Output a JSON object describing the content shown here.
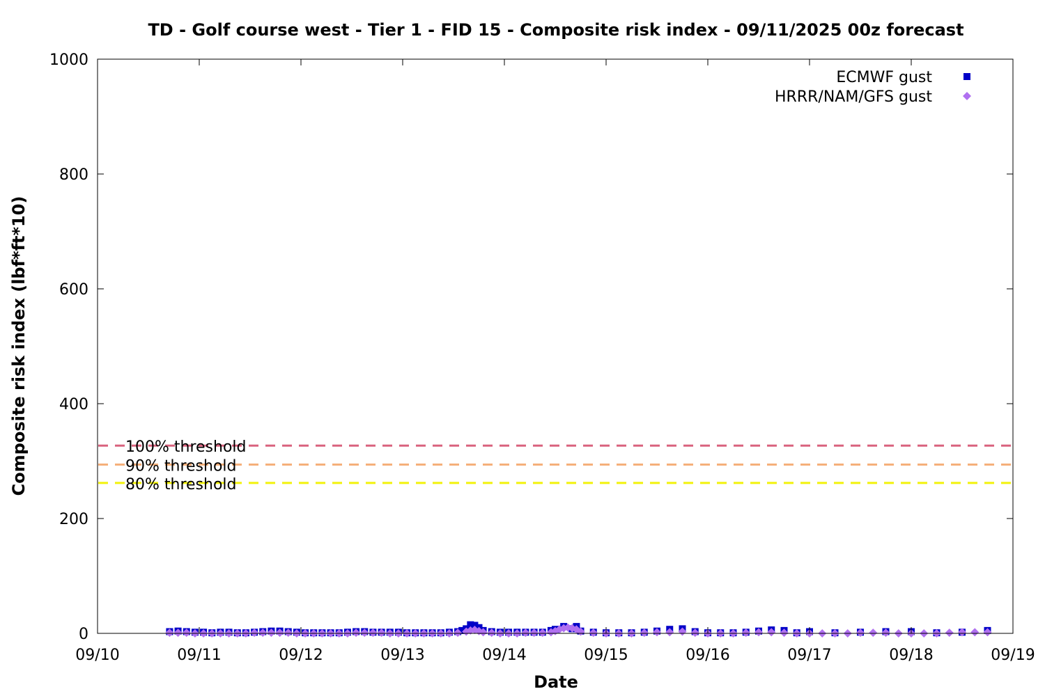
{
  "chart_data": {
    "type": "scatter",
    "title": "TD - Golf course west - Tier 1 - FID 15 - Composite risk index - 09/11/2025 00z forecast",
    "xlabel": "Date",
    "ylabel": "Composite risk index (lbf*ft*10)",
    "xlim": [
      "09/10",
      "09/19"
    ],
    "ylim": [
      0,
      1000
    ],
    "x_ticks": [
      "09/10",
      "09/11",
      "09/12",
      "09/13",
      "09/14",
      "09/15",
      "09/16",
      "09/17",
      "09/18",
      "09/19"
    ],
    "y_ticks": [
      0,
      200,
      400,
      600,
      800,
      1000
    ],
    "grid": false,
    "legend_position": "top-right",
    "thresholds": [
      {
        "label": "100% threshold",
        "value": 327,
        "color": "#d9637e"
      },
      {
        "label": "90% threshold",
        "value": 294,
        "color": "#f5b07a"
      },
      {
        "label": "80% threshold",
        "value": 262,
        "color": "#f2f20a"
      }
    ],
    "series": [
      {
        "name": "ECMWF gust",
        "marker": "square",
        "color": "#0000c8",
        "points": [
          [
            "09/10 17:00",
            3
          ],
          [
            "09/10 19:00",
            4
          ],
          [
            "09/10 21:00",
            3
          ],
          [
            "09/10 23:00",
            2
          ],
          [
            "09/11 01:00",
            2
          ],
          [
            "09/11 03:00",
            1
          ],
          [
            "09/11 05:00",
            2
          ],
          [
            "09/11 07:00",
            2
          ],
          [
            "09/11 09:00",
            1
          ],
          [
            "09/11 11:00",
            1
          ],
          [
            "09/11 13:00",
            2
          ],
          [
            "09/11 15:00",
            3
          ],
          [
            "09/11 17:00",
            4
          ],
          [
            "09/11 19:00",
            4
          ],
          [
            "09/11 21:00",
            3
          ],
          [
            "09/11 23:00",
            2
          ],
          [
            "09/12 01:00",
            1
          ],
          [
            "09/12 03:00",
            1
          ],
          [
            "09/12 05:00",
            1
          ],
          [
            "09/12 07:00",
            1
          ],
          [
            "09/12 09:00",
            1
          ],
          [
            "09/12 11:00",
            2
          ],
          [
            "09/12 13:00",
            3
          ],
          [
            "09/12 15:00",
            3
          ],
          [
            "09/12 17:00",
            2
          ],
          [
            "09/12 19:00",
            2
          ],
          [
            "09/12 21:00",
            2
          ],
          [
            "09/12 23:00",
            2
          ],
          [
            "09/13 01:00",
            1
          ],
          [
            "09/13 03:00",
            1
          ],
          [
            "09/13 05:00",
            1
          ],
          [
            "09/13 07:00",
            1
          ],
          [
            "09/13 09:00",
            1
          ],
          [
            "09/13 11:00",
            2
          ],
          [
            "09/13 13:00",
            3
          ],
          [
            "09/13 14:00",
            5
          ],
          [
            "09/13 15:00",
            8
          ],
          [
            "09/13 16:00",
            15
          ],
          [
            "09/13 17:00",
            14
          ],
          [
            "09/13 18:00",
            10
          ],
          [
            "09/13 19:00",
            5
          ],
          [
            "09/13 21:00",
            3
          ],
          [
            "09/13 23:00",
            2
          ],
          [
            "09/14 01:00",
            2
          ],
          [
            "09/14 03:00",
            2
          ],
          [
            "09/14 05:00",
            2
          ],
          [
            "09/14 07:00",
            2
          ],
          [
            "09/14 09:00",
            2
          ],
          [
            "09/14 11:00",
            5
          ],
          [
            "09/14 12:00",
            7
          ],
          [
            "09/14 14:00",
            12
          ],
          [
            "09/14 16:00",
            8
          ],
          [
            "09/14 17:00",
            12
          ],
          [
            "09/14 18:00",
            4
          ],
          [
            "09/14 21:00",
            2
          ],
          [
            "09/15 00:00",
            1
          ],
          [
            "09/15 03:00",
            1
          ],
          [
            "09/15 06:00",
            1
          ],
          [
            "09/15 09:00",
            2
          ],
          [
            "09/15 12:00",
            4
          ],
          [
            "09/15 15:00",
            7
          ],
          [
            "09/15 18:00",
            8
          ],
          [
            "09/15 21:00",
            3
          ],
          [
            "09/16 00:00",
            1
          ],
          [
            "09/16 03:00",
            1
          ],
          [
            "09/16 06:00",
            1
          ],
          [
            "09/16 09:00",
            2
          ],
          [
            "09/16 12:00",
            4
          ],
          [
            "09/16 15:00",
            6
          ],
          [
            "09/16 18:00",
            5
          ],
          [
            "09/16 21:00",
            1
          ],
          [
            "09/17 00:00",
            3
          ],
          [
            "09/17 06:00",
            1
          ],
          [
            "09/17 12:00",
            2
          ],
          [
            "09/17 18:00",
            3
          ],
          [
            "09/18 00:00",
            3
          ],
          [
            "09/18 06:00",
            1
          ],
          [
            "09/18 12:00",
            2
          ],
          [
            "09/18 18:00",
            5
          ]
        ]
      },
      {
        "name": "HRRR/NAM/GFS gust",
        "marker": "diamond",
        "color": "#b070f0",
        "points": [
          [
            "09/10 17:00",
            1
          ],
          [
            "09/10 19:00",
            1
          ],
          [
            "09/10 21:00",
            1
          ],
          [
            "09/10 23:00",
            0
          ],
          [
            "09/11 01:00",
            0
          ],
          [
            "09/11 03:00",
            0
          ],
          [
            "09/11 05:00",
            0
          ],
          [
            "09/11 07:00",
            0
          ],
          [
            "09/11 09:00",
            0
          ],
          [
            "09/11 11:00",
            0
          ],
          [
            "09/11 13:00",
            1
          ],
          [
            "09/11 15:00",
            1
          ],
          [
            "09/11 17:00",
            1
          ],
          [
            "09/11 19:00",
            1
          ],
          [
            "09/11 21:00",
            1
          ],
          [
            "09/11 23:00",
            0
          ],
          [
            "09/12 01:00",
            0
          ],
          [
            "09/12 03:00",
            0
          ],
          [
            "09/12 05:00",
            0
          ],
          [
            "09/12 07:00",
            0
          ],
          [
            "09/12 09:00",
            0
          ],
          [
            "09/12 11:00",
            0
          ],
          [
            "09/12 13:00",
            1
          ],
          [
            "09/12 15:00",
            1
          ],
          [
            "09/12 17:00",
            1
          ],
          [
            "09/12 19:00",
            1
          ],
          [
            "09/12 21:00",
            0
          ],
          [
            "09/12 23:00",
            0
          ],
          [
            "09/13 01:00",
            0
          ],
          [
            "09/13 03:00",
            0
          ],
          [
            "09/13 05:00",
            0
          ],
          [
            "09/13 07:00",
            0
          ],
          [
            "09/13 09:00",
            0
          ],
          [
            "09/13 11:00",
            0
          ],
          [
            "09/13 13:00",
            1
          ],
          [
            "09/13 15:00",
            3
          ],
          [
            "09/13 16:00",
            5
          ],
          [
            "09/13 17:00",
            6
          ],
          [
            "09/13 18:00",
            4
          ],
          [
            "09/13 19:00",
            2
          ],
          [
            "09/13 21:00",
            1
          ],
          [
            "09/13 23:00",
            0
          ],
          [
            "09/14 01:00",
            0
          ],
          [
            "09/14 03:00",
            0
          ],
          [
            "09/14 05:00",
            1
          ],
          [
            "09/14 07:00",
            1
          ],
          [
            "09/14 09:00",
            1
          ],
          [
            "09/14 11:00",
            2
          ],
          [
            "09/14 12:00",
            4
          ],
          [
            "09/14 13:00",
            7
          ],
          [
            "09/14 14:00",
            9
          ],
          [
            "09/14 15:00",
            10
          ],
          [
            "09/14 16:00",
            9
          ],
          [
            "09/14 17:00",
            7
          ],
          [
            "09/14 18:00",
            3
          ],
          [
            "09/14 21:00",
            1
          ],
          [
            "09/15 00:00",
            0
          ],
          [
            "09/15 03:00",
            0
          ],
          [
            "09/15 06:00",
            0
          ],
          [
            "09/15 09:00",
            1
          ],
          [
            "09/15 12:00",
            2
          ],
          [
            "09/15 15:00",
            2
          ],
          [
            "09/15 18:00",
            3
          ],
          [
            "09/15 21:00",
            1
          ],
          [
            "09/16 00:00",
            0
          ],
          [
            "09/16 03:00",
            0
          ],
          [
            "09/16 06:00",
            0
          ],
          [
            "09/16 09:00",
            1
          ],
          [
            "09/16 12:00",
            2
          ],
          [
            "09/16 15:00",
            2
          ],
          [
            "09/16 18:00",
            1
          ],
          [
            "09/16 21:00",
            0
          ],
          [
            "09/17 00:00",
            0
          ],
          [
            "09/17 03:00",
            0
          ],
          [
            "09/17 06:00",
            0
          ],
          [
            "09/17 09:00",
            0
          ],
          [
            "09/17 12:00",
            1
          ],
          [
            "09/17 15:00",
            1
          ],
          [
            "09/17 18:00",
            1
          ],
          [
            "09/17 21:00",
            0
          ],
          [
            "09/18 00:00",
            0
          ],
          [
            "09/18 03:00",
            0
          ],
          [
            "09/18 06:00",
            0
          ],
          [
            "09/18 09:00",
            1
          ],
          [
            "09/18 12:00",
            2
          ],
          [
            "09/18 15:00",
            2
          ],
          [
            "09/18 18:00",
            2
          ]
        ]
      }
    ]
  }
}
